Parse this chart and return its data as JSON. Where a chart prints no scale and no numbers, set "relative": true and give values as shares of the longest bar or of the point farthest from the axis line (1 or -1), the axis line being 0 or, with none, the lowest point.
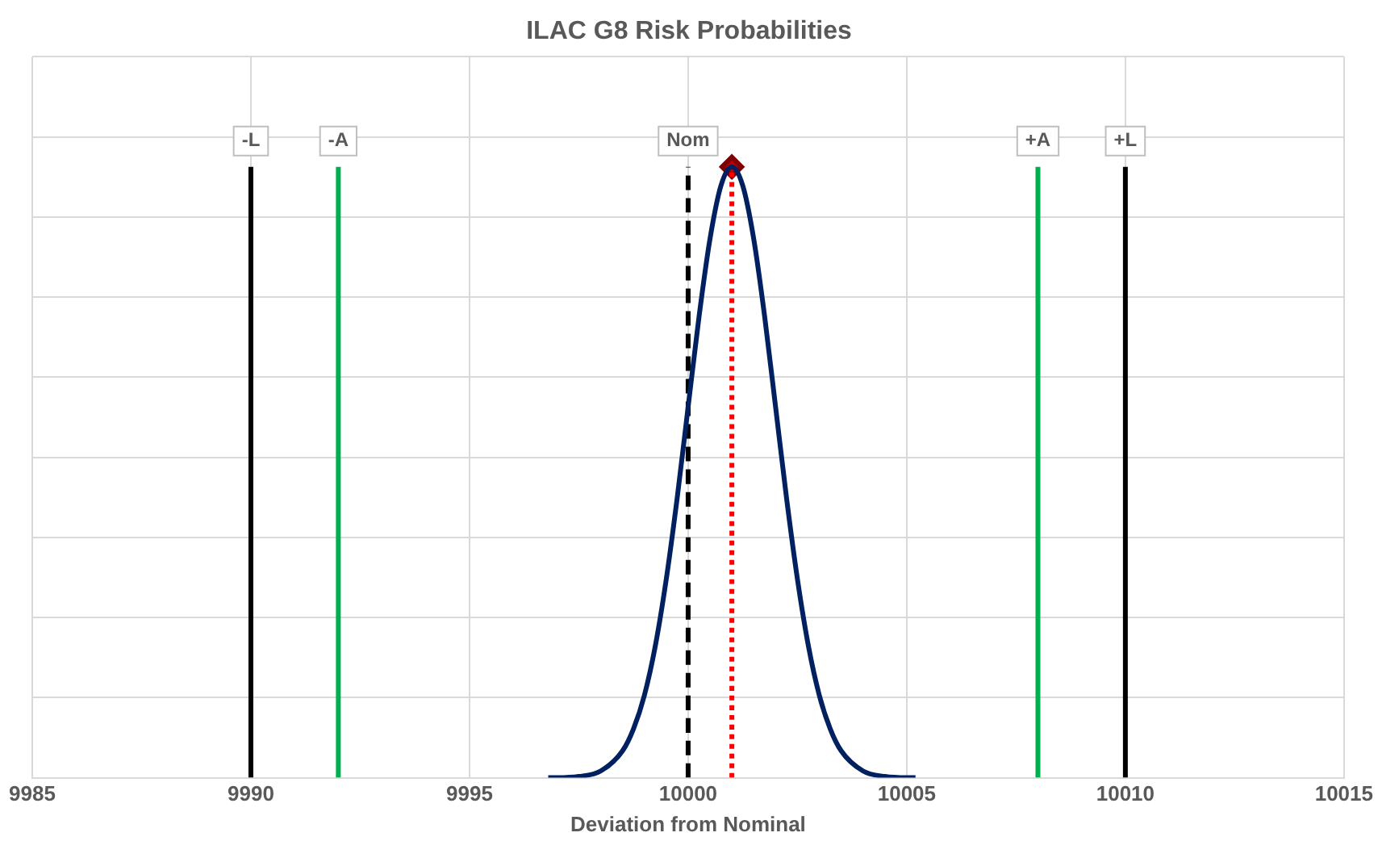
{
  "chart_data": {
    "type": "line",
    "title": "ILAC G8 Risk Probabilities",
    "xlabel": "Deviation from Nominal",
    "relative": true,
    "grid": true,
    "xlim": [
      9985,
      10015
    ],
    "xticks": [
      9985,
      9990,
      9995,
      10000,
      10005,
      10010,
      10015
    ],
    "series": [
      {
        "type": "line",
        "color": "#002060",
        "marker": "none",
        "x": [
          9996.8,
          9997,
          9997.5,
          9998,
          9998.5,
          9998.75,
          9999,
          9999.25,
          9999.5,
          9999.75,
          10000,
          10000.25,
          10000.5,
          10000.75,
          10001,
          10001.25,
          10001.5,
          10001.75,
          10002,
          10002.25,
          10002.5,
          10002.75,
          10003,
          10003.25,
          10003.5,
          10004,
          10004.5,
          10005,
          10005.2
        ],
        "values": [
          0,
          0,
          0.002,
          0.011,
          0.044,
          0.08,
          0.135,
          0.216,
          0.325,
          0.458,
          0.607,
          0.755,
          0.882,
          0.969,
          1,
          0.969,
          0.882,
          0.755,
          0.607,
          0.458,
          0.325,
          0.216,
          0.135,
          0.08,
          0.044,
          0.011,
          0.002,
          0,
          0
        ]
      },
      {
        "type": "line",
        "color": "#000000",
        "marker": "none",
        "x": [
          9990,
          9990
        ],
        "values": [
          0,
          1
        ]
      },
      {
        "type": "line",
        "color": "#00b050",
        "marker": "none",
        "x": [
          9992,
          9992
        ],
        "values": [
          0,
          1
        ]
      },
      {
        "type": "line",
        "color": "#000000",
        "marker": "none",
        "line_style": "dashed",
        "x": [
          10000,
          10000
        ],
        "values": [
          0,
          1
        ]
      },
      {
        "type": "line",
        "color": "#ff0000",
        "marker": "none",
        "line_style": "dotted",
        "x": [
          10001,
          10001
        ],
        "values": [
          0,
          1
        ]
      },
      {
        "type": "line",
        "color": "#00b050",
        "marker": "none",
        "x": [
          10008,
          10008
        ],
        "values": [
          0,
          1
        ]
      },
      {
        "type": "line",
        "color": "#000000",
        "marker": "none",
        "x": [
          10010,
          10010
        ],
        "values": [
          0,
          1
        ]
      },
      {
        "type": "scatter",
        "color": "#c00000",
        "marker": "diamond",
        "x": [
          10001
        ],
        "values": [
          1
        ]
      }
    ],
    "annotations": [
      {
        "text": "-L",
        "x": 9990,
        "y": 1
      },
      {
        "text": "-A",
        "x": 9992,
        "y": 1
      },
      {
        "text": "Nom",
        "x": 10000,
        "y": 1
      },
      {
        "text": "+A",
        "x": 10008,
        "y": 1
      },
      {
        "text": "+L",
        "x": 10010,
        "y": 1
      }
    ]
  }
}
